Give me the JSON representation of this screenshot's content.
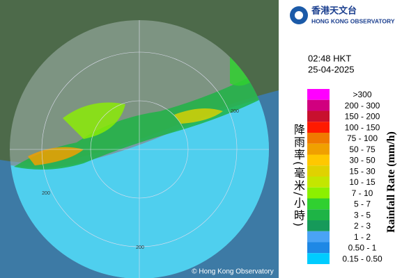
{
  "logo": {
    "chinese": "香港天文台",
    "english": "HONG KONG OBSERVATORY"
  },
  "time": "02:48 HKT",
  "date": "25-04-2025",
  "legend": {
    "title_chinese": "降雨率(毫米/小時)",
    "title_english": "Rainfall Rate (mm/h)",
    "items": [
      {
        "label": ">300",
        "color": "#ff00ff"
      },
      {
        "label": "200 - 300",
        "color": "#d1007f"
      },
      {
        "label": "150 - 200",
        "color": "#c8102e"
      },
      {
        "label": "100 - 150",
        "color": "#ff1a00"
      },
      {
        "label": "75 - 100",
        "color": "#f07a00"
      },
      {
        "label": "50 - 75",
        "color": "#f0a000"
      },
      {
        "label": "30 - 50",
        "color": "#ffc800"
      },
      {
        "label": "15 - 30",
        "color": "#e0d200"
      },
      {
        "label": "10 - 15",
        "color": "#c4e600"
      },
      {
        "label": "7 - 10",
        "color": "#8cf000"
      },
      {
        "label": "5 - 7",
        "color": "#30d030"
      },
      {
        "label": "3 - 5",
        "color": "#1eb446"
      },
      {
        "label": "2 - 3",
        "color": "#169a5a"
      },
      {
        "label": "1 - 2",
        "color": "#4aa3f5"
      },
      {
        "label": "0.50 - 1",
        "color": "#1e88e5"
      },
      {
        "label": "0.15 - 0.50",
        "color": "#00ccff"
      }
    ]
  },
  "map": {
    "range_labels": [
      "200",
      "200",
      "200"
    ]
  },
  "copyright": "© Hong Kong Observatory"
}
